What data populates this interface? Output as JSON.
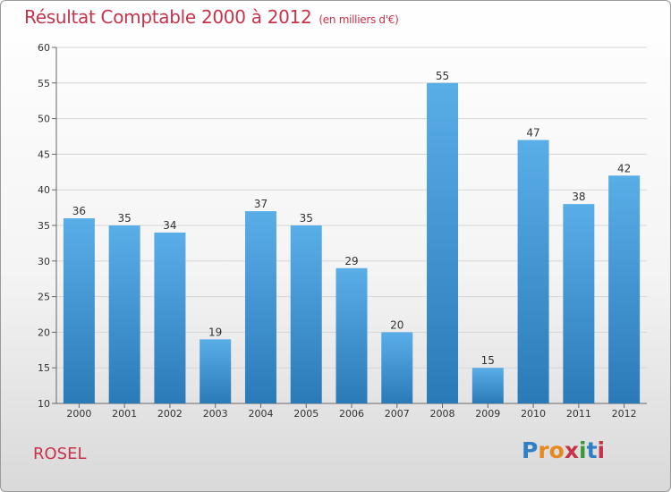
{
  "header": {
    "title": "Résultat Comptable 2000 à 2012",
    "unit": "(en milliers d'€)"
  },
  "footer": {
    "place": "ROSEL",
    "logo": [
      "P",
      "r",
      "o",
      "x",
      "i",
      "t",
      "i"
    ],
    "logo_colors": [
      "#2f7fc4",
      "#e68a1f",
      "#e68a1f",
      "#c8334b",
      "#3a9a3a",
      "#2f7fc4",
      "#c8334b"
    ]
  },
  "chart_data": {
    "type": "bar",
    "categories": [
      "2000",
      "2001",
      "2002",
      "2003",
      "2004",
      "2005",
      "2006",
      "2007",
      "2008",
      "2009",
      "2010",
      "2011",
      "2012"
    ],
    "values": [
      36,
      35,
      34,
      19,
      37,
      35,
      29,
      20,
      55,
      15,
      47,
      38,
      42
    ],
    "ylim": [
      10,
      60
    ],
    "yticks": [
      10,
      15,
      20,
      25,
      30,
      35,
      40,
      45,
      50,
      55,
      60
    ],
    "grid": true,
    "bar_color_top": "#5aaee8",
    "bar_color_bottom": "#2a7ab8"
  }
}
